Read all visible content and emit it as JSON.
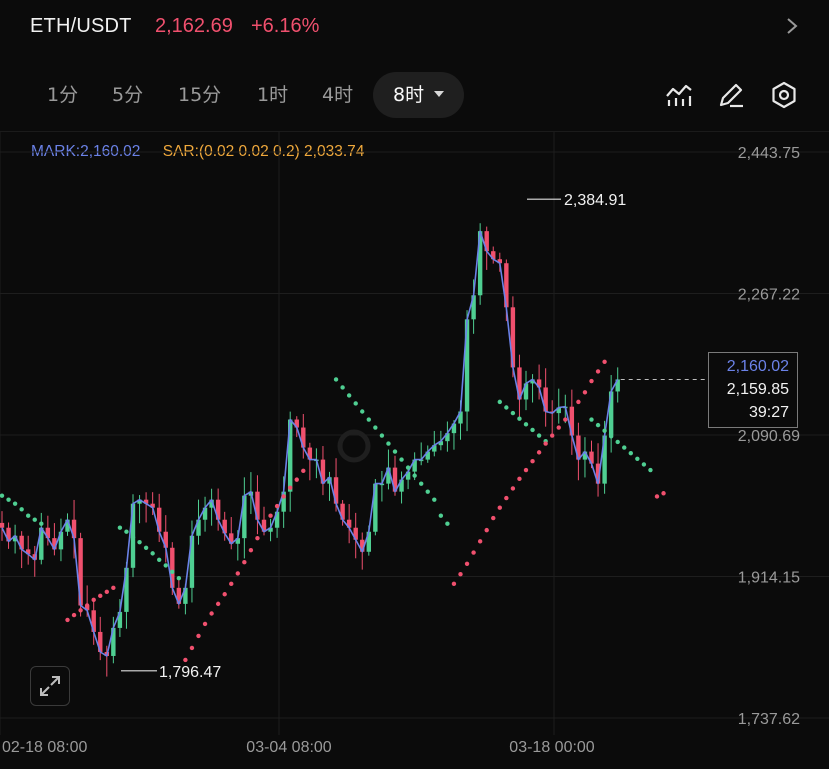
{
  "header": {
    "pair": "ETH/USDT",
    "price": "2,162.69",
    "change": "+6.16%",
    "chevron_icon": "chevron-right-icon"
  },
  "tabs": [
    {
      "label": "1分"
    },
    {
      "label": "5分"
    },
    {
      "label": "15分"
    },
    {
      "label": "1时"
    },
    {
      "label": "4时"
    },
    {
      "label": "8时",
      "active": true
    }
  ],
  "toolbar": {
    "indicator_icon": "indicator-chart-icon",
    "draw_icon": "pencil-icon",
    "settings_icon": "settings-hexagon-icon",
    "expand_icon": "expand-icon"
  },
  "legend": {
    "mark": "MARK:2,160.02",
    "sar": "SAR:(0.02 0.02 0.2) 2,033.74"
  },
  "price_box": {
    "mark": "2,160.02",
    "last": "2,159.85",
    "countdown": "39:27"
  },
  "colors": {
    "up": "#4fcf92",
    "down": "#f0506e",
    "mark_line": "#6b82e8",
    "sar_label": "#f0a93c"
  },
  "chart_data": {
    "type": "candlestick",
    "ylim": [
      1737.62,
      2443.75
    ],
    "yticks": [
      "2,443.75",
      "2,267.22",
      "2,090.69",
      "1,914.15",
      "1,737.62"
    ],
    "xticks": [
      "02-18 08:00",
      "03-04 08:00",
      "03-18 00:00"
    ],
    "high_label": "2,384.91",
    "low_label": "1,796.47",
    "high": 2384.91,
    "low": 1796.47,
    "last": 2159.85,
    "mark": 2160.02,
    "close_path": [
      1975,
      1958,
      1965,
      1948,
      1942,
      1935,
      1975,
      1962,
      1948,
      1970,
      1985,
      1962,
      1878,
      1872,
      1845,
      1820,
      1815,
      1850,
      1870,
      1925,
      2005,
      2010,
      2005,
      2000,
      1970,
      1950,
      1900,
      1880,
      1900,
      1965,
      1985,
      2000,
      2010,
      1985,
      1968,
      1955,
      1962,
      2015,
      2020,
      1985,
      1970,
      1975,
      1995,
      2020,
      2110,
      2100,
      2075,
      2060,
      2060,
      2030,
      2038,
      2005,
      1985,
      1975,
      1960,
      1945,
      1970,
      2030,
      2030,
      2050,
      2020,
      2035,
      2045,
      2060,
      2060,
      2070,
      2078,
      2083,
      2093,
      2105,
      2120,
      2235,
      2265,
      2345,
      2320,
      2310,
      2305,
      2250,
      2175,
      2135,
      2155,
      2160,
      2150,
      2120,
      2118,
      2125,
      2126,
      2090,
      2060,
      2070,
      2055,
      2030,
      2090,
      2145,
      2160
    ],
    "sar_up": [
      [
        0,
        2015
      ],
      [
        1,
        2010
      ],
      [
        2,
        2005
      ],
      [
        3,
        1998
      ],
      [
        4,
        1990
      ],
      [
        5,
        1985
      ],
      [
        6,
        1980
      ],
      [
        18,
        1975
      ],
      [
        19,
        1970
      ],
      [
        20,
        1963
      ],
      [
        21,
        1957
      ],
      [
        22,
        1950
      ],
      [
        23,
        1943
      ],
      [
        24,
        1935
      ],
      [
        25,
        1928
      ],
      [
        26,
        1920
      ],
      [
        27,
        1912
      ],
      [
        51,
        2160
      ],
      [
        52,
        2150
      ],
      [
        53,
        2140
      ],
      [
        54,
        2130
      ],
      [
        55,
        2120
      ],
      [
        56,
        2110
      ],
      [
        57,
        2100
      ],
      [
        58,
        2090
      ],
      [
        59,
        2080
      ],
      [
        60,
        2070
      ],
      [
        61,
        2060
      ],
      [
        62,
        2050
      ],
      [
        63,
        2040
      ],
      [
        64,
        2030
      ],
      [
        65,
        2020
      ],
      [
        66,
        2010
      ],
      [
        67,
        1990
      ],
      [
        68,
        1980
      ],
      [
        76,
        2132
      ],
      [
        77,
        2125
      ],
      [
        78,
        2118
      ],
      [
        79,
        2111
      ],
      [
        80,
        2104
      ],
      [
        81,
        2097
      ],
      [
        82,
        2090
      ],
      [
        83,
        2083
      ],
      [
        90,
        2110
      ],
      [
        91,
        2103
      ],
      [
        92,
        2096
      ],
      [
        93,
        2089
      ],
      [
        94,
        2082
      ],
      [
        95,
        2075
      ],
      [
        96,
        2068
      ],
      [
        97,
        2061
      ],
      [
        98,
        2054
      ],
      [
        99,
        2047
      ]
    ],
    "sar_down": [
      [
        10,
        1860
      ],
      [
        11,
        1866
      ],
      [
        12,
        1872
      ],
      [
        13,
        1878
      ],
      [
        14,
        1885
      ],
      [
        15,
        1890
      ],
      [
        16,
        1895
      ],
      [
        17,
        1900
      ],
      [
        28,
        1810
      ],
      [
        29,
        1825
      ],
      [
        30,
        1840
      ],
      [
        31,
        1855
      ],
      [
        32,
        1868
      ],
      [
        33,
        1880
      ],
      [
        34,
        1892
      ],
      [
        35,
        1905
      ],
      [
        36,
        1918
      ],
      [
        37,
        1932
      ],
      [
        38,
        1947
      ],
      [
        39,
        1962
      ],
      [
        40,
        1977
      ],
      [
        41,
        1990
      ],
      [
        42,
        2002
      ],
      [
        43,
        2014
      ],
      [
        44,
        2025
      ],
      [
        45,
        2035
      ],
      [
        46,
        2046
      ],
      [
        69,
        1905
      ],
      [
        70,
        1917
      ],
      [
        71,
        1930
      ],
      [
        72,
        1944
      ],
      [
        73,
        1958
      ],
      [
        74,
        1972
      ],
      [
        75,
        1987
      ],
      [
        76,
        2000
      ],
      [
        77,
        2012
      ],
      [
        78,
        2024
      ],
      [
        79,
        2036
      ],
      [
        80,
        2047
      ],
      [
        81,
        2058
      ],
      [
        82,
        2069
      ],
      [
        83,
        2080
      ],
      [
        84,
        2090
      ],
      [
        85,
        2100
      ],
      [
        86,
        2110
      ],
      [
        87,
        2120
      ],
      [
        88,
        2132
      ],
      [
        89,
        2144
      ],
      [
        90,
        2158
      ],
      [
        91,
        2170
      ],
      [
        92,
        2182
      ],
      [
        100,
        2014
      ],
      [
        101,
        2018
      ]
    ]
  }
}
